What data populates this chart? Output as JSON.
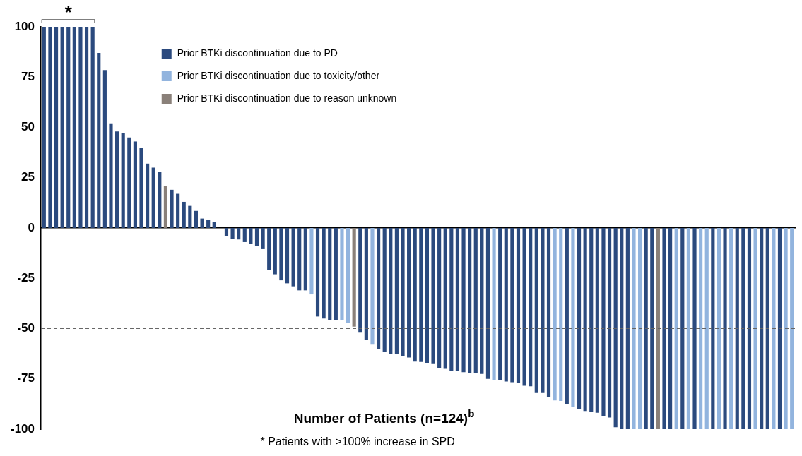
{
  "chart_data": {
    "type": "bar",
    "xlabel": "Number of Patients (n=124)$^{b}$",
    "categories": [
      null,
      null,
      null,
      null,
      null,
      null,
      null,
      null,
      null,
      null,
      null,
      null,
      null,
      null,
      null,
      null,
      null,
      null,
      null,
      null,
      null,
      null,
      null,
      null,
      null,
      null,
      null,
      null,
      null,
      null,
      null,
      null,
      null,
      null,
      null,
      null,
      null,
      null,
      null,
      null,
      null,
      null,
      null,
      null,
      null,
      null,
      null,
      null,
      null,
      null,
      null,
      null,
      null,
      null,
      null,
      null,
      null,
      null,
      null,
      null,
      null,
      null,
      null,
      null,
      null,
      null,
      null,
      null,
      null,
      null,
      null,
      null,
      null,
      null,
      null,
      null,
      null,
      null,
      null,
      null,
      null,
      null,
      null,
      null,
      null,
      null,
      null,
      null,
      null,
      null,
      null,
      null,
      null,
      null,
      null,
      null,
      null,
      null,
      null,
      null,
      null,
      null,
      null,
      null,
      null,
      null,
      null,
      null,
      null,
      null,
      null,
      null,
      null,
      null,
      null,
      null,
      null,
      null,
      null,
      null,
      null,
      null,
      null,
      null
    ],
    "series": [
      {
        "name": "Prior BTKi discontinuation due to PD",
        "color": "#2b4a7e",
        "values": [
          100,
          100,
          100,
          100,
          100,
          100,
          100,
          100,
          100,
          87,
          78.5,
          52,
          48,
          47,
          45,
          43,
          40,
          32,
          30,
          28,
          null,
          19,
          17,
          13,
          11,
          8.5,
          4.7,
          4,
          3,
          0,
          -4,
          -5.5,
          -5.7,
          -7,
          -8,
          -9,
          -10.5,
          -21,
          -23,
          -26,
          -27.5,
          -29,
          -31,
          -31,
          null,
          -44,
          -45,
          -45.7,
          -46,
          null,
          null,
          null,
          -52,
          -55.6,
          null,
          -60,
          -61.5,
          -62.6,
          -62.7,
          -63.6,
          -64.4,
          -66.4,
          -66.6,
          -67,
          -67.3,
          -69.7,
          -70,
          -71,
          -71,
          -71.7,
          -72,
          -72.3,
          -72.5,
          -75,
          null,
          -75.8,
          -76.3,
          -76.7,
          -77.2,
          -78.4,
          -78.7,
          -82,
          -82,
          -84,
          null,
          null,
          -87.7,
          null,
          -90,
          -91,
          -91.2,
          -91.8,
          -93.7,
          -94.2,
          -99,
          -100,
          -100,
          null,
          null,
          -100,
          -100,
          null,
          -100,
          -100,
          null,
          -100,
          null,
          -100,
          null,
          null,
          -100,
          null,
          -100,
          null,
          -100,
          -100,
          -100,
          null,
          -100,
          -100,
          null,
          -100,
          null,
          null
        ]
      },
      {
        "name": "Prior BTKi discontinuation due to toxicity/other",
        "color": "#92b4de",
        "values": [
          null,
          null,
          null,
          null,
          null,
          null,
          null,
          null,
          null,
          null,
          null,
          null,
          null,
          null,
          null,
          null,
          null,
          null,
          null,
          null,
          null,
          null,
          null,
          null,
          null,
          null,
          null,
          null,
          null,
          null,
          null,
          null,
          null,
          null,
          null,
          null,
          null,
          null,
          null,
          null,
          null,
          null,
          null,
          null,
          -33,
          null,
          null,
          null,
          null,
          -46,
          -47,
          null,
          null,
          null,
          -58,
          null,
          null,
          null,
          null,
          null,
          null,
          null,
          null,
          null,
          null,
          null,
          null,
          null,
          null,
          null,
          null,
          null,
          null,
          null,
          -75.4,
          null,
          null,
          null,
          null,
          null,
          null,
          null,
          null,
          null,
          -85.7,
          -86,
          null,
          -89,
          null,
          null,
          null,
          null,
          null,
          null,
          null,
          null,
          null,
          -100,
          -100,
          null,
          null,
          null,
          null,
          null,
          -100,
          null,
          -100,
          null,
          -100,
          -100,
          null,
          -100,
          null,
          -100,
          null,
          null,
          null,
          -100,
          null,
          null,
          -100,
          null,
          -100,
          -100
        ]
      },
      {
        "name": "Prior BTKi discontinuation due to reason unknown",
        "color": "#8a8079",
        "values": [
          null,
          null,
          null,
          null,
          null,
          null,
          null,
          null,
          null,
          null,
          null,
          null,
          null,
          null,
          null,
          null,
          null,
          null,
          null,
          null,
          21,
          null,
          null,
          null,
          null,
          null,
          null,
          null,
          null,
          null,
          null,
          null,
          null,
          null,
          null,
          null,
          null,
          null,
          null,
          null,
          null,
          null,
          null,
          null,
          null,
          null,
          null,
          null,
          null,
          null,
          null,
          -49,
          null,
          null,
          null,
          null,
          null,
          null,
          null,
          null,
          null,
          null,
          null,
          null,
          null,
          null,
          null,
          null,
          null,
          null,
          null,
          null,
          null,
          null,
          null,
          null,
          null,
          null,
          null,
          null,
          null,
          null,
          null,
          null,
          null,
          null,
          null,
          null,
          null,
          null,
          null,
          null,
          null,
          null,
          null,
          null,
          null,
          null,
          null,
          null,
          null,
          -100,
          null,
          null,
          null,
          null,
          null,
          null,
          null,
          null,
          null,
          null,
          null,
          null,
          null,
          null,
          null,
          null,
          null,
          null,
          null,
          null,
          null,
          null
        ]
      }
    ],
    "ylim": [
      -100,
      100
    ],
    "yticks": [
      -100,
      -75,
      -50,
      -25,
      0,
      25,
      50,
      75,
      100
    ],
    "grid": false,
    "legend": "top",
    "ref_lines": [
      {
        "axis": "y",
        "value": -50,
        "color": "#666666",
        "line_style": "dashed"
      }
    ],
    "annotations": [
      "*",
      "* Patients with >100% increase in SPD"
    ]
  }
}
